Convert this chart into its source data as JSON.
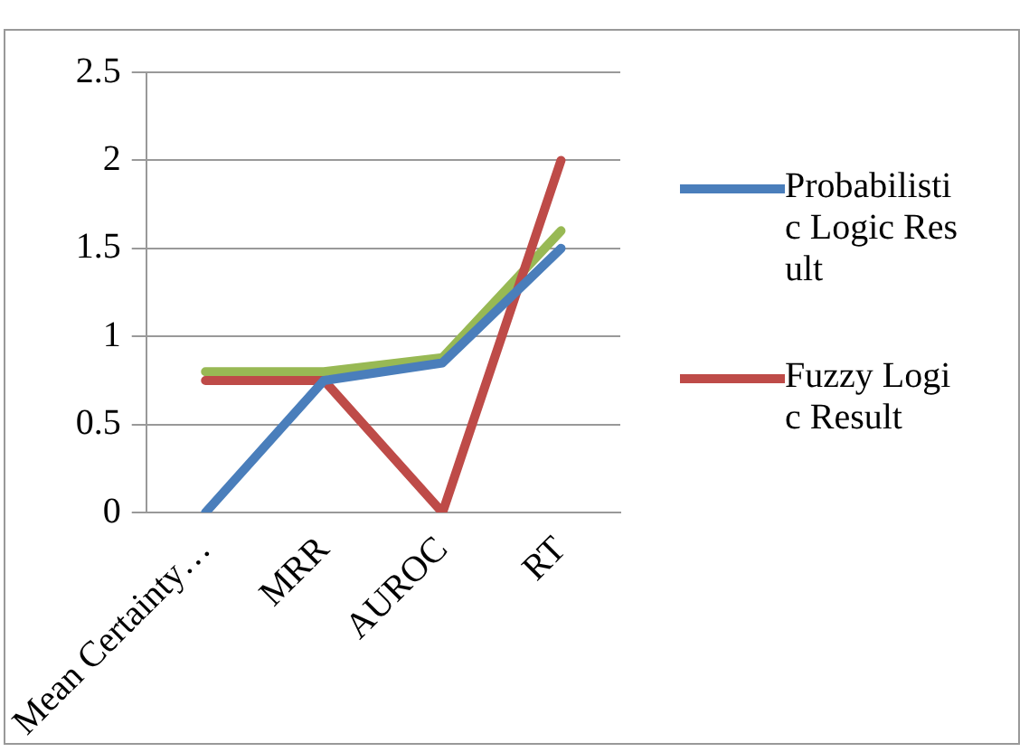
{
  "chart_data": {
    "type": "line",
    "categories": [
      "Mean Certainty…",
      "MRR",
      "AUROC",
      "RT"
    ],
    "series": [
      {
        "name": "Probabilistic Logic Result",
        "color": "#4a7ebb",
        "values": [
          0,
          0.75,
          0.85,
          1.5
        ]
      },
      {
        "name": "Fuzzy Logic Result",
        "color": "#be4b48",
        "values": [
          0.75,
          0.75,
          0,
          2
        ]
      },
      {
        "color": "#98b954",
        "values": [
          0.8,
          0.8,
          0.88,
          1.6
        ]
      }
    ],
    "ylim": [
      0,
      2.5
    ],
    "yticks": [
      0,
      0.5,
      1,
      1.5,
      2,
      2.5
    ],
    "grid": "y",
    "legend": "right",
    "marker": "none",
    "line_style": "solid"
  }
}
